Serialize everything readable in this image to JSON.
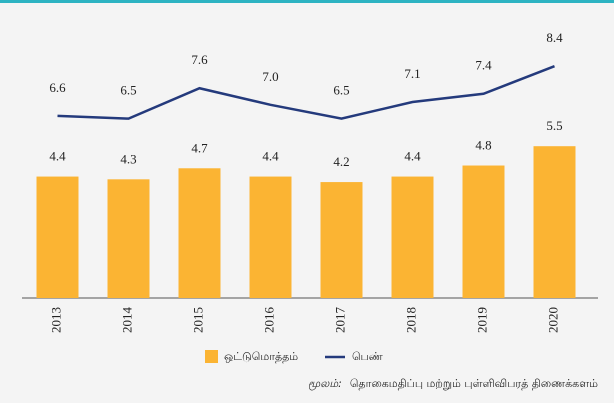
{
  "chart_data": {
    "type": "bar_line",
    "categories": [
      "2013",
      "2014",
      "2015",
      "2016",
      "2017",
      "2018",
      "2019",
      "2020"
    ],
    "series": [
      {
        "name": "ஒட்டுமொத்தம்",
        "type": "bar",
        "color": "#fbb433",
        "values": [
          4.4,
          4.3,
          4.7,
          4.4,
          4.2,
          4.4,
          4.8,
          5.5
        ]
      },
      {
        "name": "பெண்",
        "type": "line",
        "color": "#243a7c",
        "values": [
          6.6,
          6.5,
          7.6,
          7.0,
          6.5,
          7.1,
          7.4,
          8.4
        ],
        "value_labels": [
          "6.6",
          "6.5",
          "7.6",
          "7.0",
          "6.5",
          "7.1",
          "7.4",
          "8.4"
        ]
      }
    ],
    "source_label": "மூலம்:",
    "source": "தொகைமதிப்பு மற்றும் புள்ளிவிபரத் திணைக்களம்"
  }
}
